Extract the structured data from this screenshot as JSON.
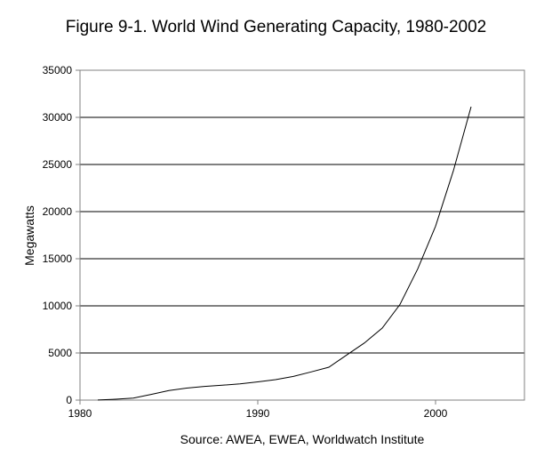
{
  "chart_data": {
    "type": "line",
    "title": "Figure 9-1. World Wind Generating Capacity, 1980-2002",
    "xlabel": "",
    "ylabel": "Megawatts",
    "note": "Source: AWEA, EWEA, Worldwatch Institute",
    "xlim": [
      1980,
      2005
    ],
    "ylim": [
      0,
      35000
    ],
    "x_ticks": [
      1980,
      1990,
      2000
    ],
    "y_ticks": [
      0,
      5000,
      10000,
      15000,
      20000,
      25000,
      30000,
      35000
    ],
    "grid": "horizontal",
    "legend": "none",
    "series": [
      {
        "color": "#000000",
        "x": [
          1981,
          1982,
          1983,
          1984,
          1985,
          1986,
          1987,
          1988,
          1989,
          1990,
          1991,
          1992,
          1993,
          1994,
          1995,
          1996,
          1997,
          1998,
          1999,
          2000,
          2001,
          2002
        ],
        "y": [
          10,
          90,
          210,
          600,
          1020,
          1270,
          1450,
          1580,
          1730,
          1930,
          2170,
          2510,
          2990,
          3490,
          4780,
          6070,
          7640,
          10150,
          13930,
          18450,
          24320,
          31130
        ]
      }
    ]
  }
}
